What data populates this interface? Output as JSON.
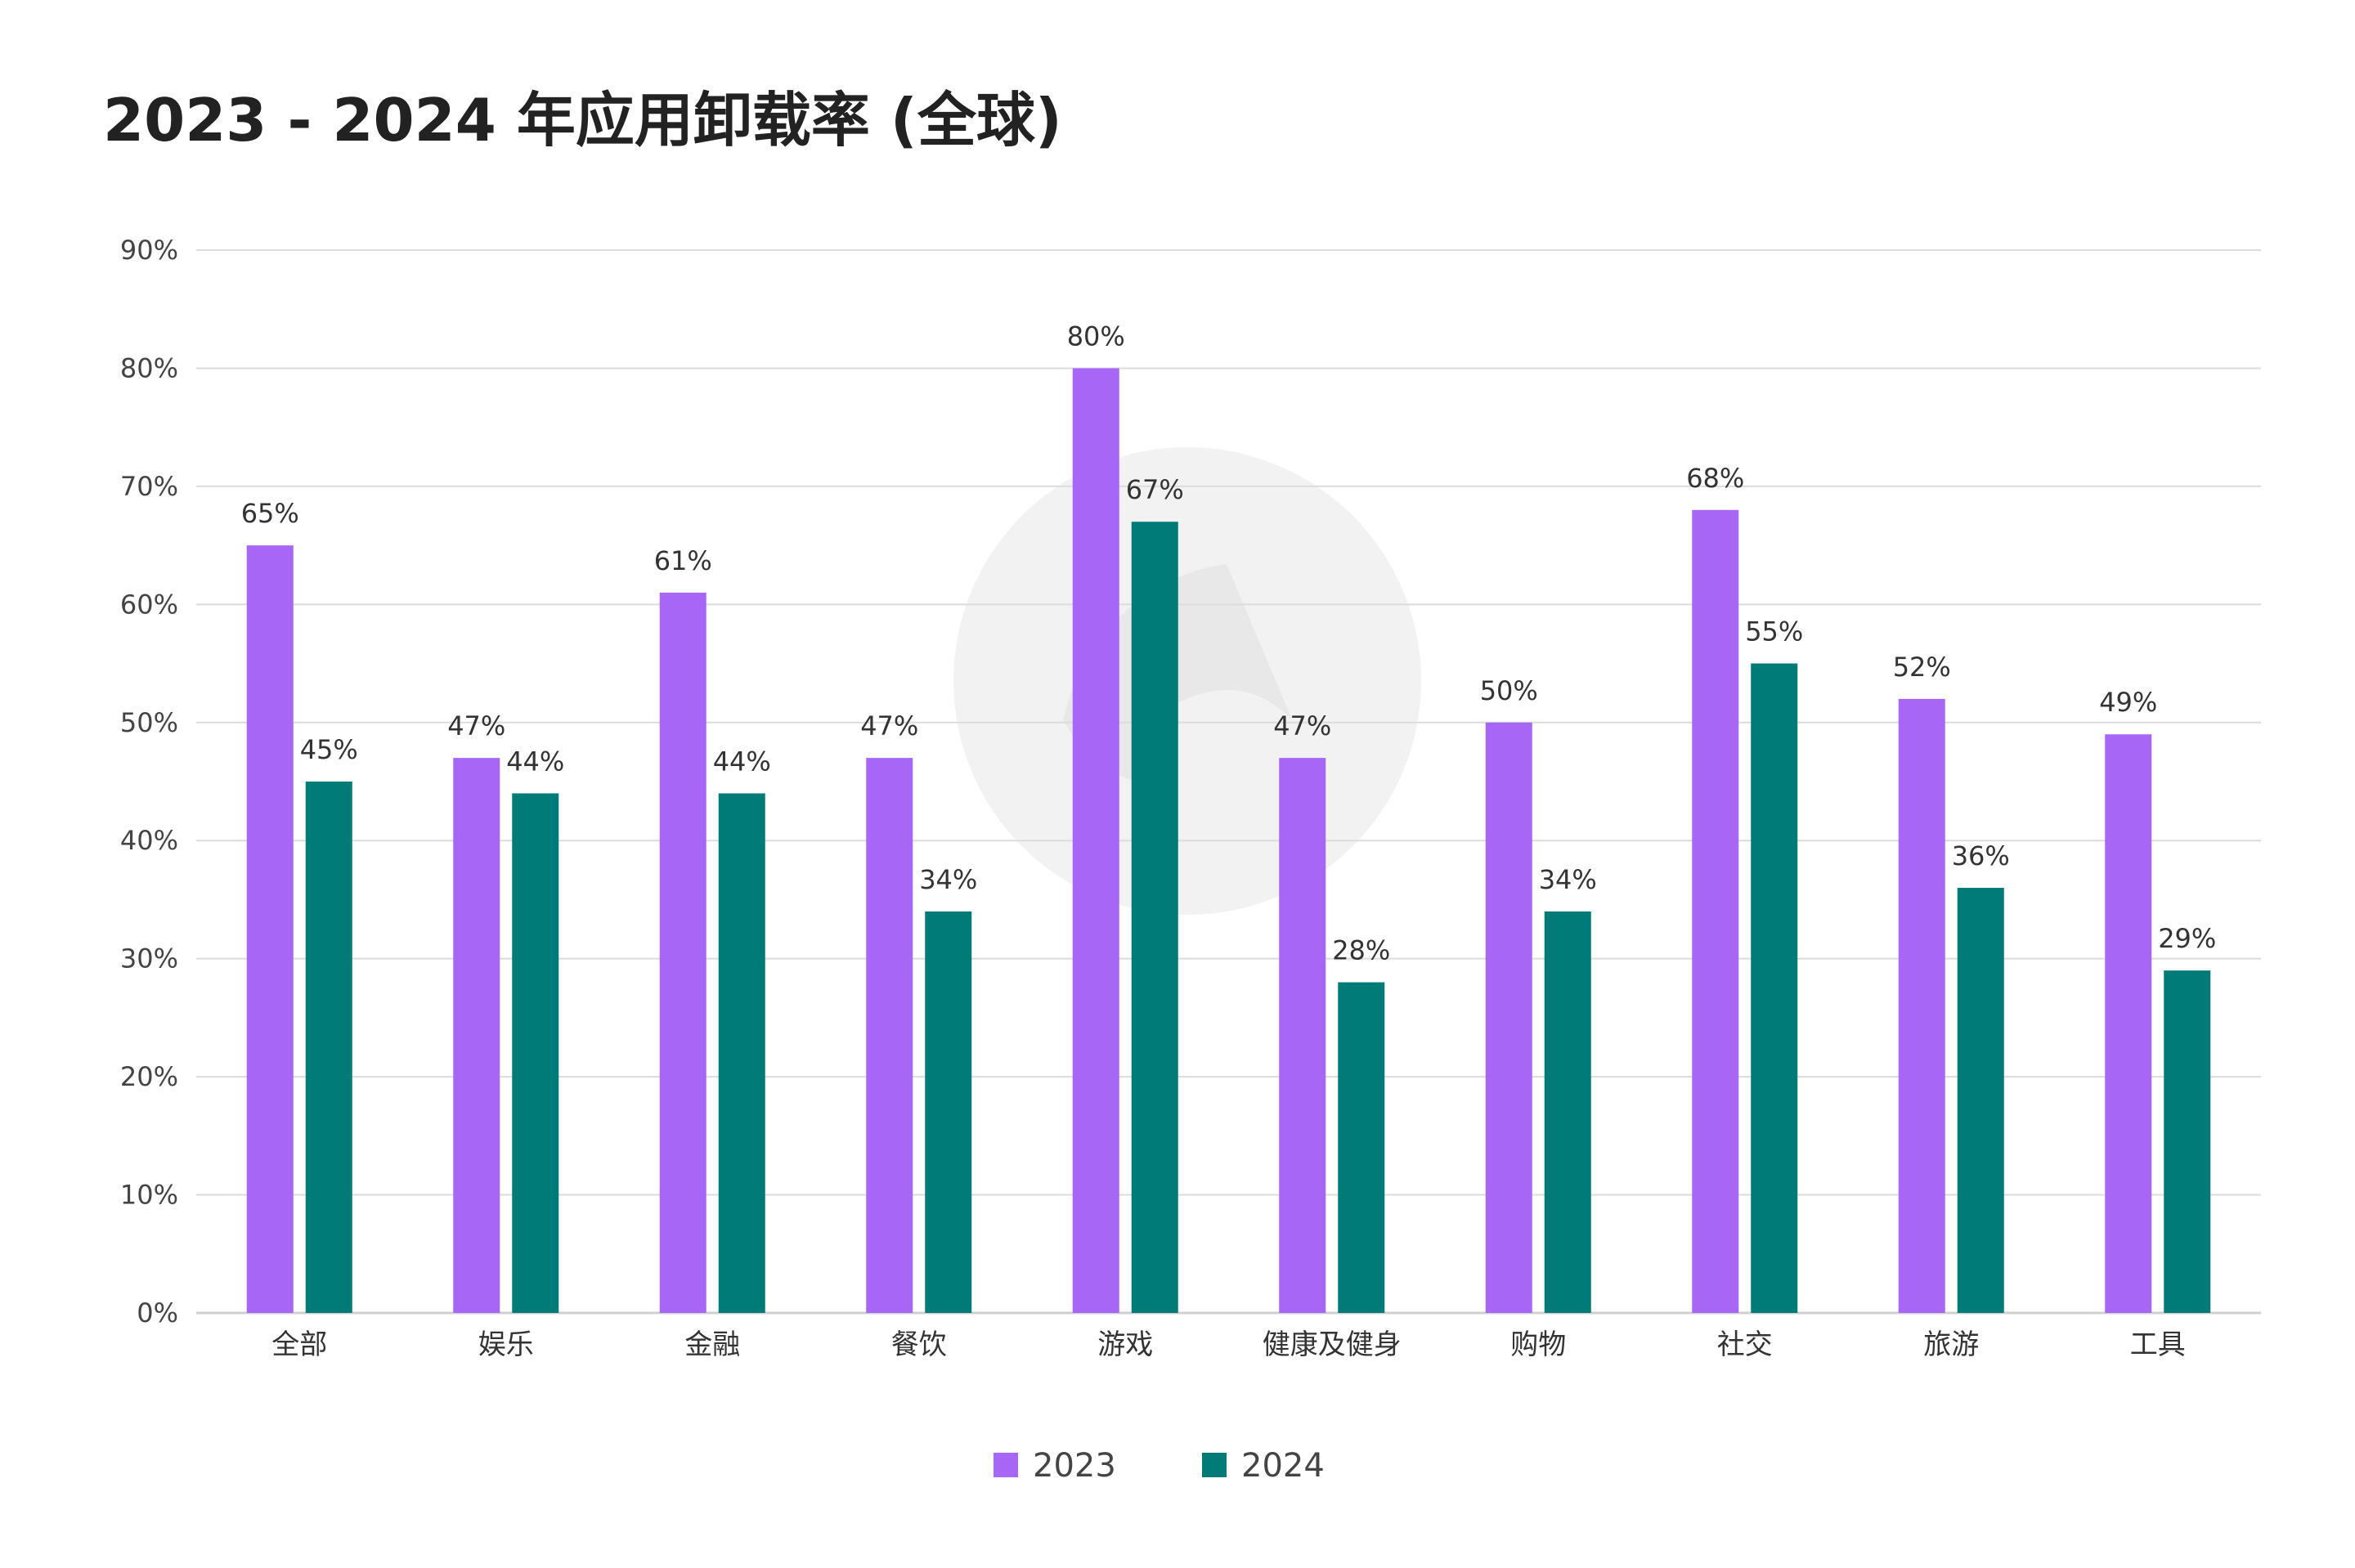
{
  "chart_data": {
    "type": "bar",
    "title": "2023 - 2024 年应用卸载率 (全球)",
    "xlabel": "",
    "ylabel": "",
    "categories": [
      "全部",
      "娱乐",
      "金融",
      "餐饮",
      "游戏",
      "健康及健身",
      "购物",
      "社交",
      "旅游",
      "工具"
    ],
    "series": [
      {
        "name": "2023",
        "color": "#a866f7",
        "values": [
          65,
          47,
          61,
          47,
          80,
          47,
          50,
          68,
          52,
          49
        ]
      },
      {
        "name": "2024",
        "color": "#007b77",
        "values": [
          45,
          44,
          44,
          34,
          67,
          28,
          34,
          55,
          36,
          29
        ]
      }
    ],
    "ylim": [
      0,
      90
    ],
    "yticks": [
      0,
      10,
      20,
      30,
      40,
      50,
      60,
      70,
      80,
      90
    ],
    "tick_suffix": "%",
    "data_label_suffix": "%",
    "grid": true,
    "legend_position": "bottom-center"
  }
}
